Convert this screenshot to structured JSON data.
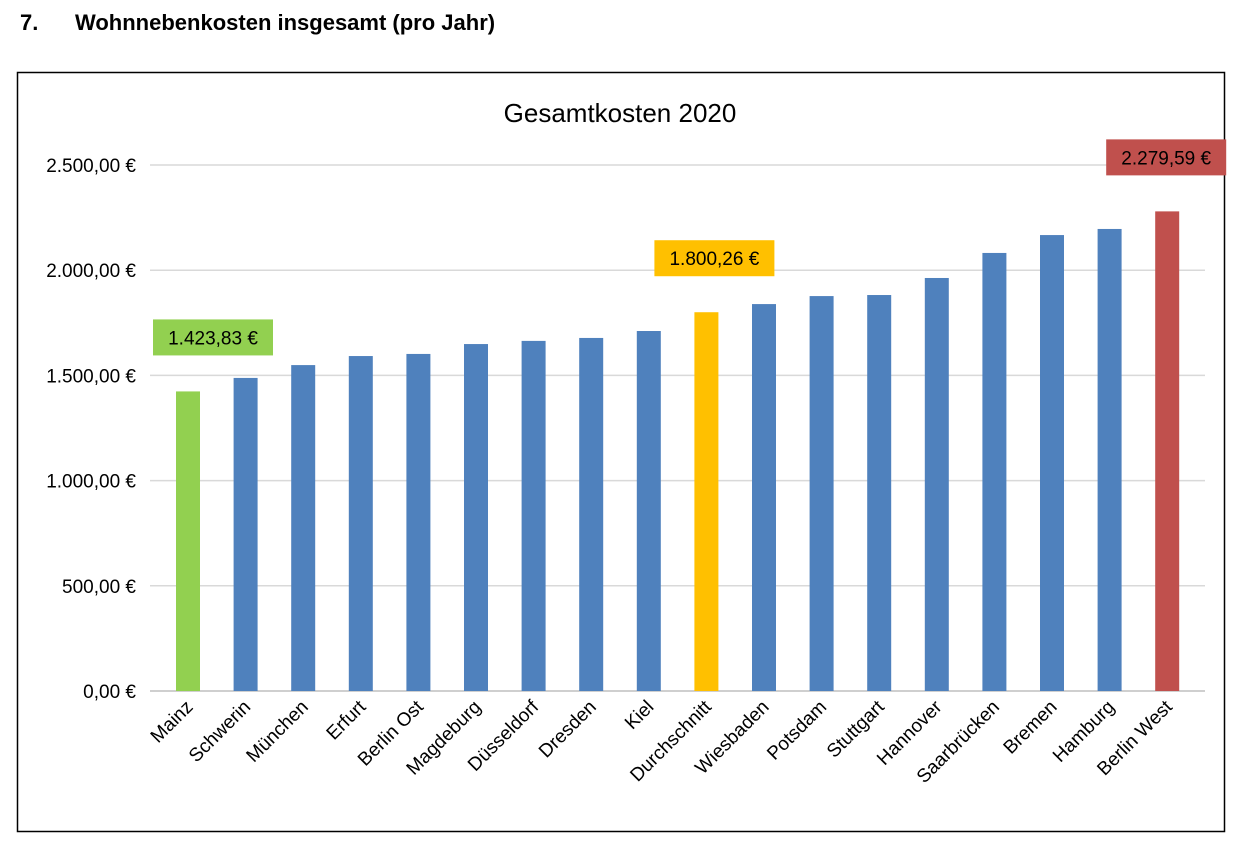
{
  "heading": {
    "number": "7.",
    "text": "Wohnnebenkosten insgesamt (pro Jahr)"
  },
  "chart_data": {
    "type": "bar",
    "title": "Gesamtkosten 2020",
    "xlabel": "",
    "ylabel": "",
    "ylim": [
      0,
      2500
    ],
    "grid": true,
    "y_ticks": [
      "0,00 €",
      "500,00 €",
      "1.000,00 €",
      "1.500,00 €",
      "2.000,00 €",
      "2.500,00 €"
    ],
    "y_tick_values": [
      0,
      500,
      1000,
      1500,
      2000,
      2500
    ],
    "categories": [
      "Mainz",
      "Schwerin",
      "München",
      "Erfurt",
      "Berlin Ost",
      "Magdeburg",
      "Düsseldorf",
      "Dresden",
      "Kiel",
      "Durchschnitt",
      "Wiesbaden",
      "Potsdam",
      "Stuttgart",
      "Hannover",
      "Saarbrücken",
      "Bremen",
      "Hamburg",
      "Berlin West"
    ],
    "values": [
      1423.83,
      1488,
      1549,
      1592,
      1602,
      1649,
      1664,
      1678,
      1711,
      1800.26,
      1839,
      1877,
      1882,
      1963,
      2082,
      2167,
      2196,
      2279.59
    ],
    "bar_colors": [
      "#92D050",
      "#4F81BD",
      "#4F81BD",
      "#4F81BD",
      "#4F81BD",
      "#4F81BD",
      "#4F81BD",
      "#4F81BD",
      "#4F81BD",
      "#FFC000",
      "#4F81BD",
      "#4F81BD",
      "#4F81BD",
      "#4F81BD",
      "#4F81BD",
      "#4F81BD",
      "#4F81BD",
      "#C0504D"
    ],
    "data_labels": [
      {
        "category": "Mainz",
        "text": "1.423,83 €",
        "color": "#92D050"
      },
      {
        "category": "Durchschnitt",
        "text": "1.800,26 €",
        "color": "#FFC000"
      },
      {
        "category": "Berlin West",
        "text": "2.279,59 €",
        "color": "#C0504D"
      }
    ]
  }
}
